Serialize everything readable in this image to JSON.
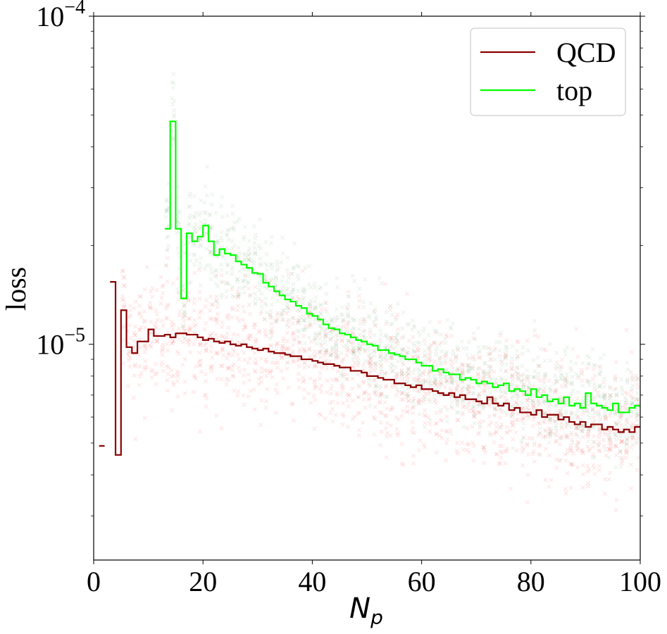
{
  "chart_data": {
    "type": "scatter",
    "xlabel_base": "N",
    "xlabel_sub": "p",
    "ylabel": "loss",
    "xlim": [
      0,
      100
    ],
    "ylim": [
      2.2e-06,
      0.0001
    ],
    "yscale": "log",
    "x_ticks": [
      0,
      20,
      40,
      60,
      80,
      100
    ],
    "x_tick_labels": [
      "0",
      "20",
      "40",
      "60",
      "80",
      "100"
    ],
    "y_ticks": [
      {
        "value": 1e-05,
        "base": "10",
        "exp": "−5"
      },
      {
        "value": 0.0001,
        "base": "10",
        "exp": "−4"
      }
    ],
    "legend": {
      "placement": "top-right"
    },
    "colors": {
      "qcd_line": "#8b0000",
      "top_line": "#00ff00",
      "qcd_points": "#ff0000",
      "top_points": "#006400"
    },
    "series": [
      {
        "name": "QCD",
        "kind": "step-mean",
        "x": [
          1,
          3,
          4,
          5,
          6,
          7,
          8,
          9,
          10,
          11,
          12,
          13,
          14,
          15,
          16,
          17,
          18,
          19,
          20,
          21,
          22,
          23,
          24,
          25,
          26,
          27,
          28,
          29,
          30,
          31,
          32,
          33,
          34,
          35,
          36,
          37,
          38,
          39,
          40,
          41,
          42,
          43,
          44,
          45,
          46,
          47,
          48,
          49,
          50,
          51,
          52,
          53,
          54,
          55,
          56,
          57,
          58,
          59,
          60,
          61,
          62,
          63,
          64,
          65,
          66,
          67,
          68,
          69,
          70,
          71,
          72,
          73,
          74,
          75,
          76,
          77,
          78,
          79,
          80,
          81,
          82,
          83,
          84,
          85,
          86,
          87,
          88,
          89,
          90,
          91,
          92,
          93,
          94,
          95,
          96,
          97,
          98,
          99
        ],
        "values": [
          4.9e-06,
          1.55e-05,
          4.6e-06,
          1.27e-05,
          9.8e-06,
          9.4e-06,
          1.02e-05,
          1.02e-05,
          1.11e-05,
          1.06e-05,
          1.06e-05,
          1.07e-05,
          1.05e-05,
          1.08e-05,
          1.08e-05,
          1.07e-05,
          1.07e-05,
          1.05e-05,
          1.03e-05,
          1.04e-05,
          1.02e-05,
          1.01e-05,
          1.02e-05,
          1e-05,
          9.9e-06,
          1e-05,
          9.8e-06,
          9.7e-06,
          9.6e-06,
          9.7e-06,
          9.5e-06,
          9.4e-06,
          9.4e-06,
          9.3e-06,
          9.2e-06,
          9.2e-06,
          9e-06,
          9e-06,
          8.9e-06,
          8.8e-06,
          8.7e-06,
          8.7e-06,
          8.6e-06,
          8.5e-06,
          8.5e-06,
          8.3e-06,
          8.3e-06,
          8.2e-06,
          8e-06,
          8e-06,
          7.9e-06,
          7.8e-06,
          7.8e-06,
          7.6e-06,
          7.6e-06,
          7.5e-06,
          7.4e-06,
          7.5e-06,
          7.3e-06,
          7.3e-06,
          7.2e-06,
          7.1e-06,
          7e-06,
          7.1e-06,
          6.9e-06,
          7e-06,
          6.8e-06,
          6.8e-06,
          6.7e-06,
          6.6e-06,
          6.9e-06,
          6.6e-06,
          6.5e-06,
          6.6e-06,
          6.3e-06,
          6.4e-06,
          6.2e-06,
          6.2e-06,
          6.1e-06,
          6.3e-06,
          6e-06,
          6.1e-06,
          6.1e-06,
          5.9e-06,
          6e-06,
          5.8e-06,
          5.7e-06,
          5.8e-06,
          5.6e-06,
          5.7e-06,
          5.7e-06,
          5.5e-06,
          5.6e-06,
          5.5e-06,
          5.4e-06,
          5.5e-06,
          5.4e-06,
          5.6e-06
        ]
      },
      {
        "name": "top",
        "kind": "step-mean",
        "x": [
          13,
          14,
          15,
          16,
          17,
          18,
          19,
          20,
          21,
          22,
          23,
          24,
          25,
          26,
          27,
          28,
          29,
          30,
          31,
          32,
          33,
          34,
          35,
          36,
          37,
          38,
          39,
          40,
          41,
          42,
          43,
          44,
          45,
          46,
          47,
          48,
          49,
          50,
          51,
          52,
          53,
          54,
          55,
          56,
          57,
          58,
          59,
          60,
          61,
          62,
          63,
          64,
          65,
          66,
          67,
          68,
          69,
          70,
          71,
          72,
          73,
          74,
          75,
          76,
          77,
          78,
          79,
          80,
          81,
          82,
          83,
          84,
          85,
          86,
          87,
          88,
          89,
          90,
          91,
          92,
          93,
          94,
          95,
          96,
          97,
          98,
          99
        ],
        "values": [
          2.25e-05,
          4.78e-05,
          2.25e-05,
          1.38e-05,
          2.18e-05,
          2.06e-05,
          2.13e-05,
          2.3e-05,
          2.06e-05,
          1.87e-05,
          1.95e-05,
          1.89e-05,
          1.87e-05,
          1.79e-05,
          1.75e-05,
          1.71e-05,
          1.65e-05,
          1.64e-05,
          1.54e-05,
          1.5e-05,
          1.45e-05,
          1.41e-05,
          1.37e-05,
          1.35e-05,
          1.31e-05,
          1.29e-05,
          1.24e-05,
          1.22e-05,
          1.19e-05,
          1.15e-05,
          1.12e-05,
          1.11e-05,
          1.08e-05,
          1.07e-05,
          1.05e-05,
          1.03e-05,
          1.02e-05,
          1e-05,
          9.9e-06,
          9.6e-06,
          9.6e-06,
          9.4e-06,
          9.3e-06,
          9.2e-06,
          9e-06,
          9e-06,
          8.8e-06,
          8.6e-06,
          8.6e-06,
          8.3e-06,
          8.4e-06,
          8.2e-06,
          8.1e-06,
          8.1e-06,
          7.8e-06,
          7.9e-06,
          7.8e-06,
          7.6e-06,
          7.7e-06,
          7.6e-06,
          7.4e-06,
          7.5e-06,
          7.6e-06,
          7.2e-06,
          7.3e-06,
          7.2e-06,
          7e-06,
          7.3e-06,
          6.9e-06,
          7e-06,
          6.7e-06,
          6.8e-06,
          6.6e-06,
          6.9e-06,
          6.5e-06,
          6.6e-06,
          6.4e-06,
          7.1e-06,
          6.6e-06,
          6.5e-06,
          6.4e-06,
          6.3e-06,
          6.6e-06,
          6.2e-06,
          6.2e-06,
          6.4e-06,
          6.5e-06
        ]
      }
    ],
    "scatter_clouds": [
      {
        "name": "QCD",
        "color_key": "qcd_points",
        "x_range": [
          5,
          100
        ],
        "spread_decades": 0.18
      },
      {
        "name": "top",
        "color_key": "top_points",
        "x_range": [
          12,
          100
        ],
        "spread_decades": 0.14
      }
    ]
  }
}
